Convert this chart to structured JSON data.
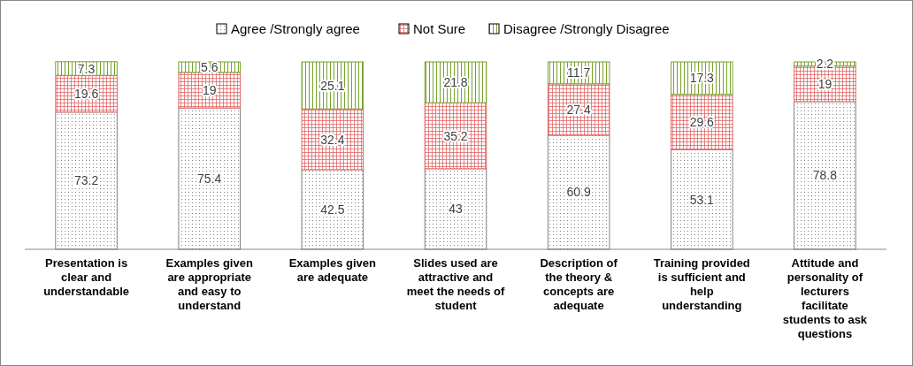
{
  "chart_data": {
    "type": "bar",
    "stacked": true,
    "data_labels": true,
    "legend": "top",
    "grid": false,
    "ylim": [
      0,
      100
    ],
    "categories": [
      "Presentation is clear and understandable",
      "Examples  given are appropriate and easy to understand",
      "Examples  given are adequate",
      "Slides used are attractive and meet the needs of student",
      "Description of the theory & concepts are adequate",
      "Training provided is sufficient and help understanding",
      "Attitude and personality of lecturers facilitate students  to ask questions"
    ],
    "series": [
      {
        "name": "Agree /Strongly agree",
        "color": "#808080",
        "values": [
          73.2,
          75.4,
          42.5,
          43,
          60.9,
          53.1,
          78.8
        ]
      },
      {
        "name": "Not Sure",
        "color": "#e06666",
        "values": [
          19.6,
          19,
          32.4,
          35.2,
          27.4,
          29.6,
          19
        ]
      },
      {
        "name": "Disagree /Strongly Disagree",
        "color": "#76a32b",
        "values": [
          7.3,
          5.6,
          25.1,
          21.8,
          11.7,
          17.3,
          2.2
        ]
      }
    ]
  }
}
